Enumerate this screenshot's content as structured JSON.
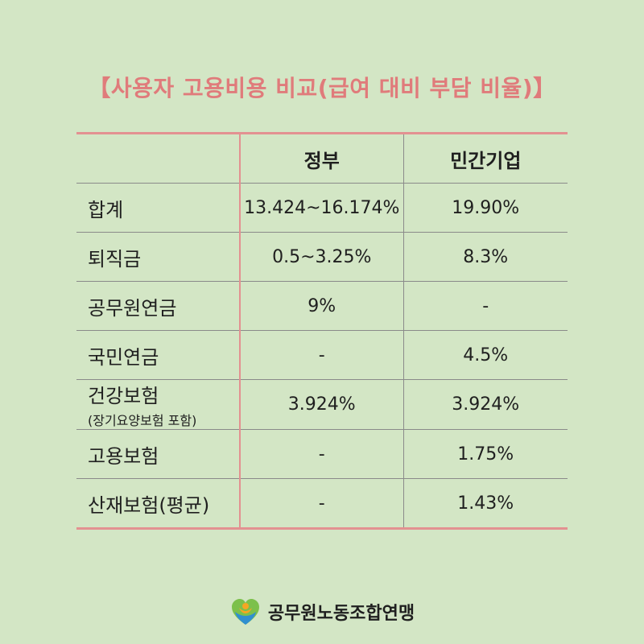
{
  "title": "【사용자 고용비용 비교(급여 대비 부담 비율)】",
  "table": {
    "headers": [
      "",
      "정부",
      "민간기업"
    ],
    "rows": [
      {
        "label": "합계",
        "sub_label": "",
        "gov": "13.424~16.174%",
        "private": "19.90%"
      },
      {
        "label": "퇴직금",
        "sub_label": "",
        "gov": "0.5~3.25%",
        "private": "8.3%"
      },
      {
        "label": "공무원연금",
        "sub_label": "",
        "gov": "9%",
        "private": "-"
      },
      {
        "label": "국민연금",
        "sub_label": "",
        "gov": "-",
        "private": "4.5%"
      },
      {
        "label": "건강보험",
        "sub_label": "(장기요양보험 포함)",
        "gov": "3.924%",
        "private": "3.924%"
      },
      {
        "label": "고용보험",
        "sub_label": "",
        "gov": "-",
        "private": "1.75%"
      },
      {
        "label": "산재보험(평균)",
        "sub_label": "",
        "gov": "-",
        "private": "1.43%"
      }
    ]
  },
  "footer": {
    "org_name": "공무원노동조합연맹",
    "logo_icon": "heart-hands-logo-icon"
  },
  "colors": {
    "background": "#d3e6c5",
    "accent": "#e07b7b",
    "rule": "#e39191"
  }
}
